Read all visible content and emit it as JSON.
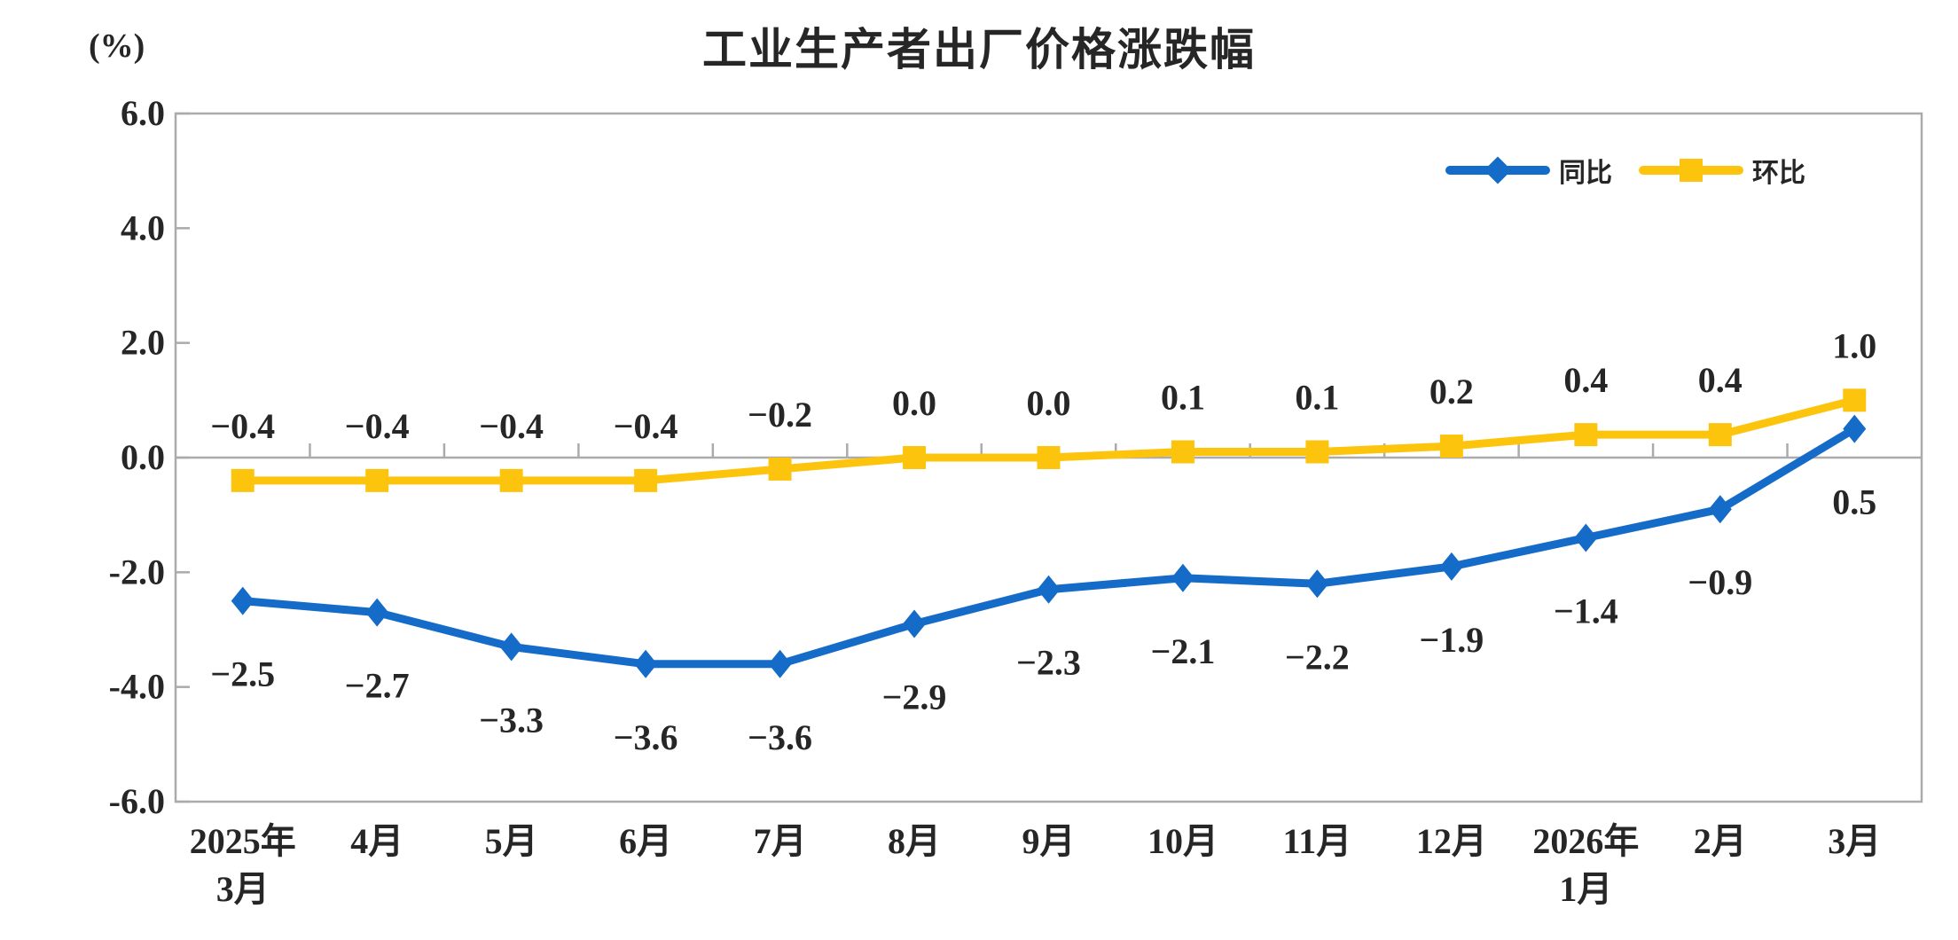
{
  "chart_data": {
    "type": "line",
    "title": "工业生产者出厂价格涨跌幅",
    "unit_label": "(%)",
    "categories": [
      {
        "line1": "2025年",
        "line2": "3月"
      },
      {
        "line1": "4月"
      },
      {
        "line1": "5月"
      },
      {
        "line1": "6月"
      },
      {
        "line1": "7月"
      },
      {
        "line1": "8月"
      },
      {
        "line1": "9月"
      },
      {
        "line1": "10月"
      },
      {
        "line1": "11月"
      },
      {
        "line1": "12月"
      },
      {
        "line1": "2026年",
        "line2": "1月"
      },
      {
        "line1": "2月"
      },
      {
        "line1": "3月"
      }
    ],
    "y_tick_labels": [
      "6.0",
      "4.0",
      "2.0",
      "0.0",
      "-2.0",
      "-4.0",
      "-6.0"
    ],
    "y_tick_values": [
      6,
      4,
      2,
      0,
      -2,
      -4,
      -6
    ],
    "ylim": [
      -6,
      6
    ],
    "grid": "zero-line-only",
    "legend": {
      "position": "top-right-inside",
      "entries": [
        "同比",
        "环比"
      ]
    },
    "series": [
      {
        "name": "同比",
        "color": "#156BC8",
        "marker": "diamond",
        "label_side": "below",
        "values": [
          -2.5,
          -2.7,
          -3.3,
          -3.6,
          -3.6,
          -2.9,
          -2.3,
          -2.1,
          -2.2,
          -1.9,
          -1.4,
          -0.9,
          0.5
        ]
      },
      {
        "name": "环比",
        "color": "#FDC40D",
        "marker": "square",
        "label_side": "above",
        "values": [
          -0.4,
          -0.4,
          -0.4,
          -0.4,
          -0.2,
          0.0,
          0.0,
          0.1,
          0.1,
          0.2,
          0.4,
          0.4,
          1.0
        ]
      }
    ],
    "colors": {
      "axis": "#ABABAB",
      "text": "#262626"
    }
  }
}
